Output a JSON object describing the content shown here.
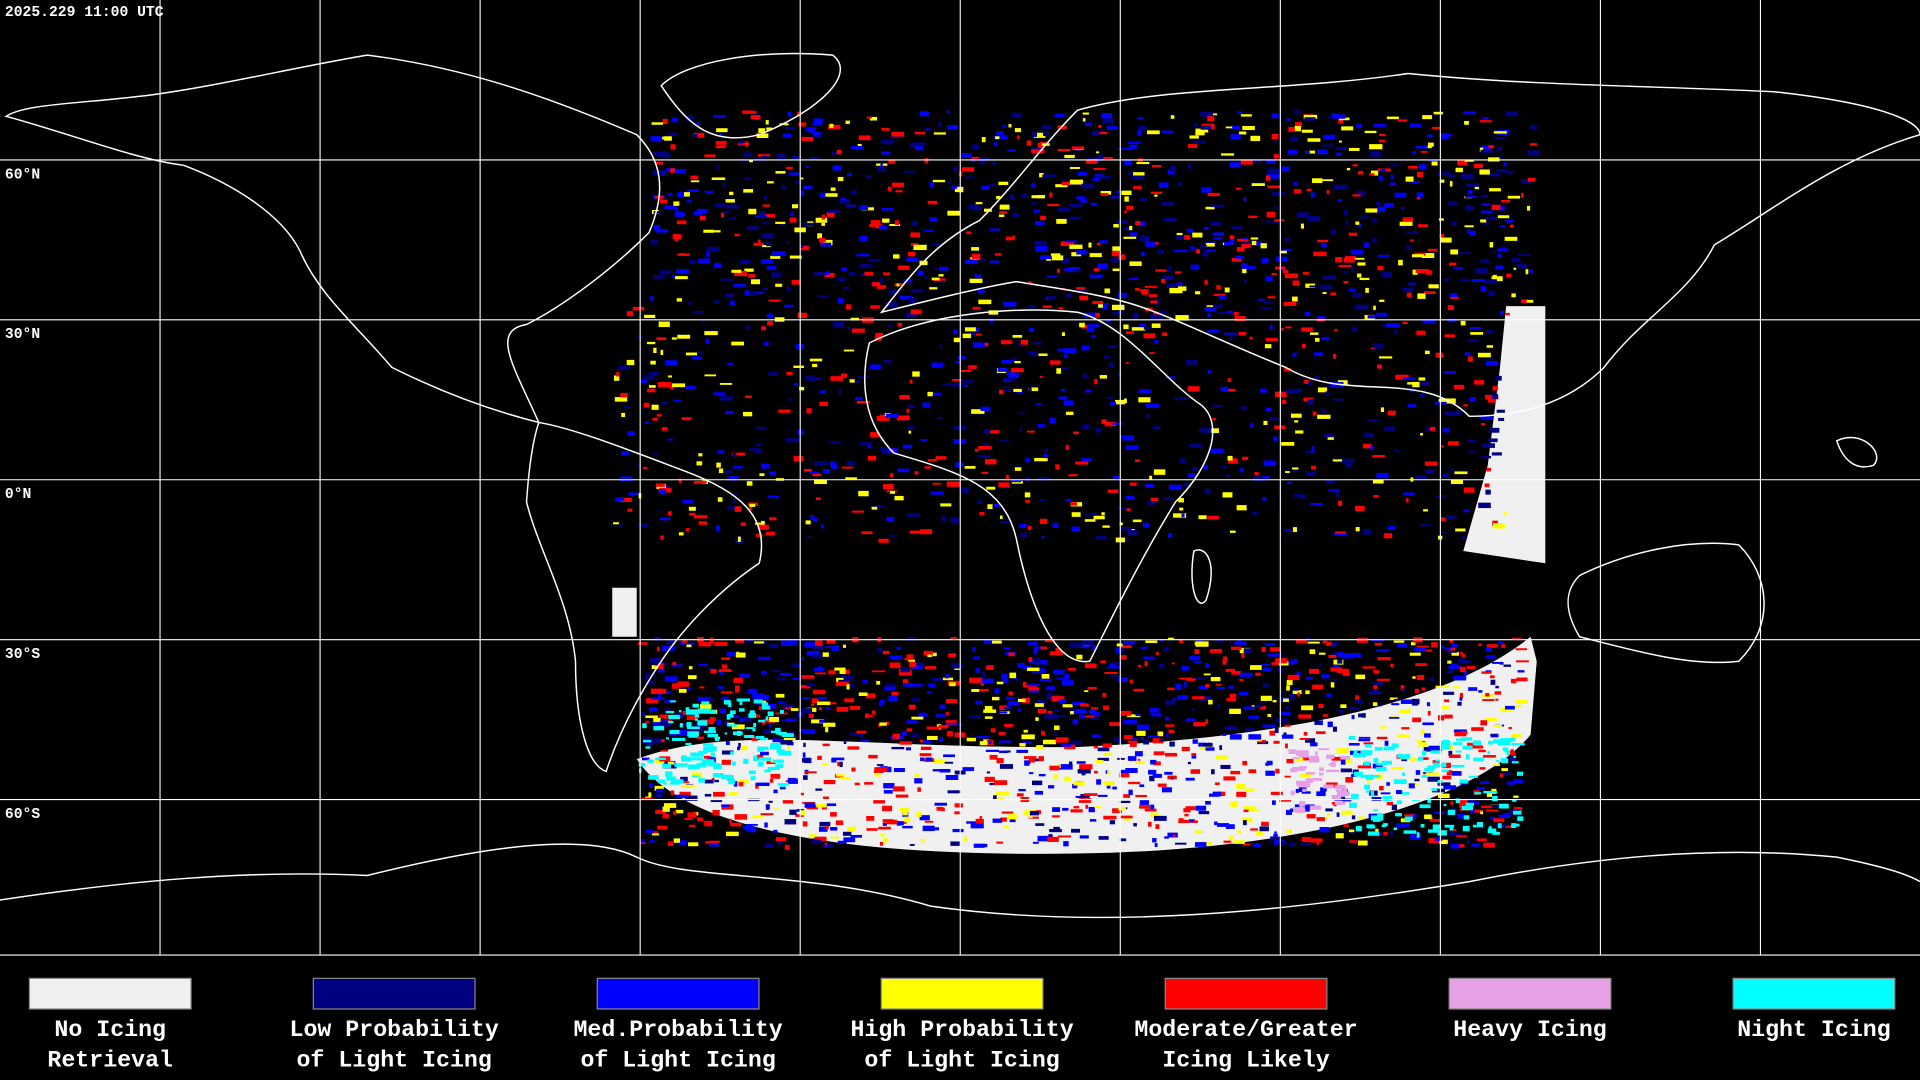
{
  "header": {
    "timestamp": "2025.229 11:00 UTC"
  },
  "map": {
    "lat_labels": [
      "60°N",
      "30°N",
      "0°N",
      "30°S",
      "60°S"
    ]
  },
  "legend": {
    "items": [
      {
        "label": [
          "No Icing",
          "Retrieval"
        ],
        "color": "#f0f0f0"
      },
      {
        "label": [
          "Low Probability",
          "of Light Icing"
        ],
        "color": "#000080"
      },
      {
        "label": [
          "Med.Probability",
          "of Light Icing"
        ],
        "color": "#0000ff"
      },
      {
        "label": [
          "High Probability",
          "of Light Icing"
        ],
        "color": "#ffff00"
      },
      {
        "label": [
          "Moderate/Greater",
          "Icing Likely"
        ],
        "color": "#ff0000"
      },
      {
        "label": [
          "Heavy Icing"
        ],
        "color": "#e6a0e6"
      },
      {
        "label": [
          "Night Icing"
        ],
        "color": "#00ffff"
      }
    ]
  }
}
